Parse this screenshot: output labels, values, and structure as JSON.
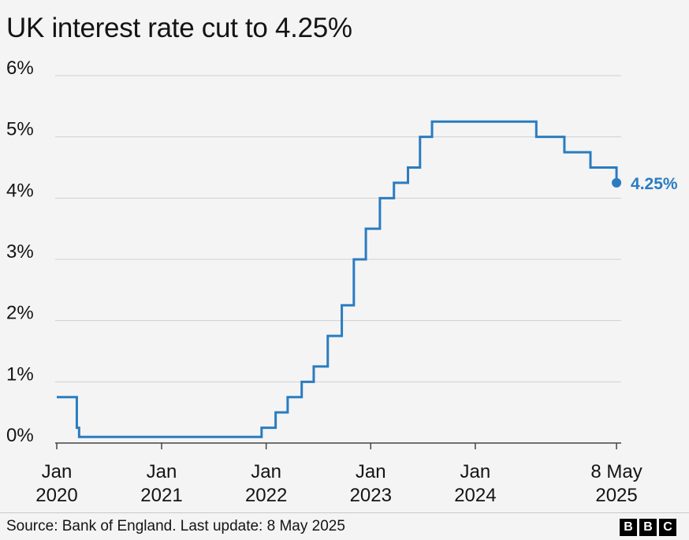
{
  "chart_data": {
    "type": "line",
    "title": "UK interest rate cut to 4.25%",
    "line_color": "#2a7cc0",
    "ylim": [
      0,
      6
    ],
    "y_ticks": [
      "0%",
      "1%",
      "2%",
      "3%",
      "4%",
      "5%",
      "6%"
    ],
    "x_ticks": [
      {
        "date": "2020-01-01",
        "line1": "Jan",
        "line2": "2020"
      },
      {
        "date": "2021-01-01",
        "line1": "Jan",
        "line2": "2021"
      },
      {
        "date": "2022-01-01",
        "line1": "Jan",
        "line2": "2022"
      },
      {
        "date": "2023-01-01",
        "line1": "Jan",
        "line2": "2023"
      },
      {
        "date": "2024-01-01",
        "line1": "Jan",
        "line2": "2024"
      },
      {
        "date": "2025-05-08",
        "line1": "8 May",
        "line2": "2025"
      }
    ],
    "step_series": [
      {
        "date": "2020-01-01",
        "rate": 0.75
      },
      {
        "date": "2020-03-11",
        "rate": 0.25
      },
      {
        "date": "2020-03-19",
        "rate": 0.1
      },
      {
        "date": "2021-12-16",
        "rate": 0.25
      },
      {
        "date": "2022-02-03",
        "rate": 0.5
      },
      {
        "date": "2022-03-17",
        "rate": 0.75
      },
      {
        "date": "2022-05-05",
        "rate": 1.0
      },
      {
        "date": "2022-06-16",
        "rate": 1.25
      },
      {
        "date": "2022-08-04",
        "rate": 1.75
      },
      {
        "date": "2022-09-22",
        "rate": 2.25
      },
      {
        "date": "2022-11-03",
        "rate": 3.0
      },
      {
        "date": "2022-12-15",
        "rate": 3.5
      },
      {
        "date": "2023-02-02",
        "rate": 4.0
      },
      {
        "date": "2023-03-23",
        "rate": 4.25
      },
      {
        "date": "2023-05-11",
        "rate": 4.5
      },
      {
        "date": "2023-06-22",
        "rate": 5.0
      },
      {
        "date": "2023-08-03",
        "rate": 5.25
      },
      {
        "date": "2024-08-01",
        "rate": 5.0
      },
      {
        "date": "2024-11-07",
        "rate": 4.75
      },
      {
        "date": "2025-02-06",
        "rate": 4.5
      },
      {
        "date": "2025-05-08",
        "rate": 4.25
      }
    ],
    "end_label": "4.25%"
  },
  "footer": {
    "source": "Source: Bank of England. Last update: 8 May 2025",
    "logo_letters": [
      "B",
      "B",
      "C"
    ]
  }
}
